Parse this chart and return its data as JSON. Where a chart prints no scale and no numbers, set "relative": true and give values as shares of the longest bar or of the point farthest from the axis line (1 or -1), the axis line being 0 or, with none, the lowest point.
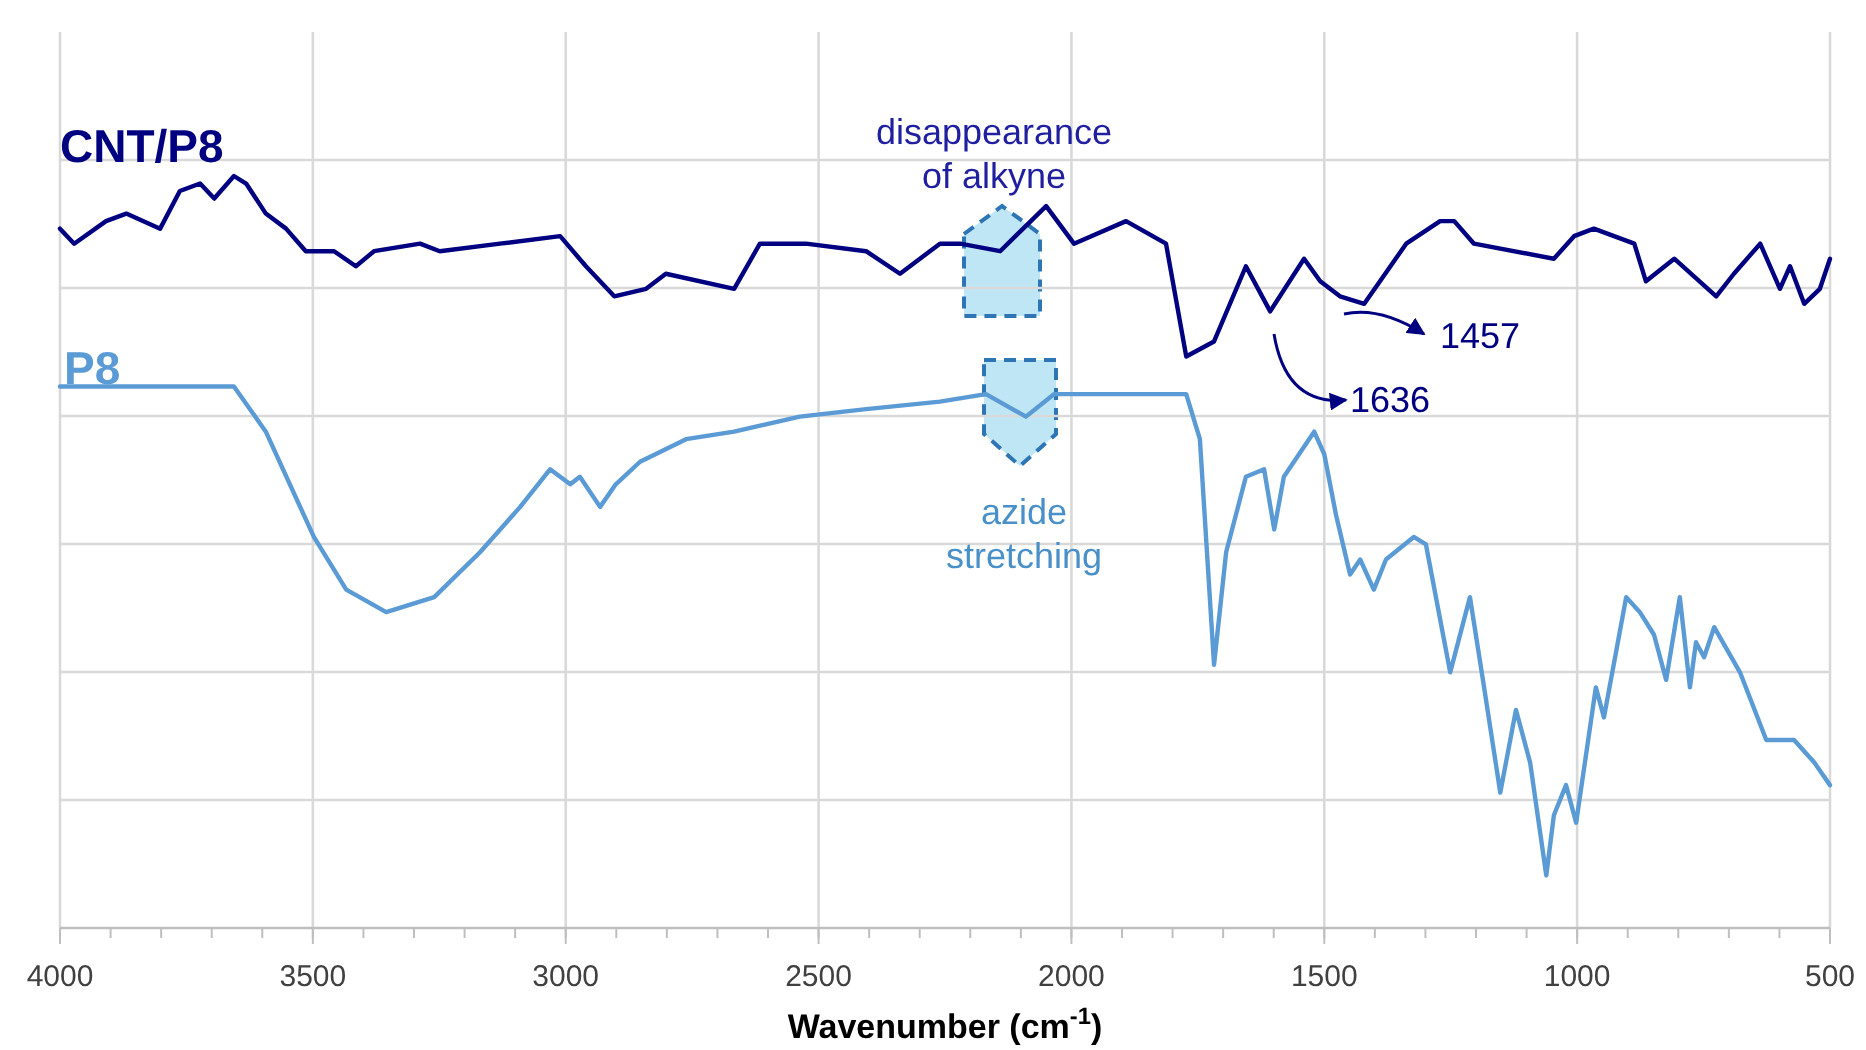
{
  "chart_data": {
    "type": "line",
    "relative": true,
    "xlabel": "Wavenumber (cm$^{-1}$)",
    "xlim": [
      4000,
      500
    ],
    "xticks": [
      4000,
      3500,
      3000,
      2500,
      2000,
      1500,
      1000,
      500
    ],
    "grid": true,
    "legend": false,
    "marker": "none",
    "line_style": "solid",
    "annotations": [
      "disappearance\nof alkyne",
      "azide\nstretching",
      "1636",
      "1457"
    ],
    "series": [
      {
        "name": "CNT/P8",
        "color": "#000080",
        "x": [
          4000,
          3972,
          3909,
          3869,
          3802,
          3763,
          3723,
          3695,
          3656,
          3632,
          3593,
          3553,
          3514,
          3458,
          3415,
          3379,
          3288,
          3249,
          3130,
          3011,
          2960,
          2904,
          2841,
          2802,
          2667,
          2616,
          2525,
          2406,
          2339,
          2260,
          2220,
          2141,
          2050,
          1995,
          1892,
          1813,
          1773,
          1718,
          1655,
          1607,
          1540,
          1508,
          1469,
          1421,
          1338,
          1271,
          1243,
          1204,
          1046,
          1006,
          967,
          887,
          864,
          808,
          725,
          690,
          638,
          599,
          579,
          551,
          520,
          500
        ],
        "values": [
          0.93,
          0.91,
          0.94,
          0.95,
          0.93,
          0.98,
          0.99,
          0.97,
          1.0,
          0.99,
          0.95,
          0.93,
          0.9,
          0.9,
          0.88,
          0.9,
          0.91,
          0.9,
          0.91,
          0.92,
          0.88,
          0.84,
          0.85,
          0.87,
          0.85,
          0.91,
          0.91,
          0.9,
          0.87,
          0.91,
          0.91,
          0.9,
          0.96,
          0.91,
          0.94,
          0.91,
          0.76,
          0.78,
          0.88,
          0.82,
          0.89,
          0.86,
          0.84,
          0.83,
          0.91,
          0.94,
          0.94,
          0.91,
          0.89,
          0.92,
          0.93,
          0.91,
          0.86,
          0.89,
          0.84,
          0.87,
          0.91,
          0.85,
          0.88,
          0.83,
          0.85,
          0.89
        ]
      },
      {
        "name": "P8",
        "color": "#5b9bd5",
        "x": [
          4000,
          3684,
          3656,
          3593,
          3498,
          3434,
          3355,
          3260,
          3169,
          3090,
          3031,
          2991,
          2972,
          2932,
          2901,
          2853,
          2762,
          2667,
          2537,
          2406,
          2260,
          2169,
          2090,
          2034,
          1773,
          1746,
          1718,
          1694,
          1655,
          1619,
          1599,
          1580,
          1520,
          1500,
          1477,
          1449,
          1429,
          1402,
          1378,
          1323,
          1299,
          1251,
          1212,
          1184,
          1152,
          1121,
          1093,
          1061,
          1046,
          1022,
          1002,
          963,
          947,
          903,
          876,
          848,
          824,
          797,
          777,
          765,
          749,
          729,
          678,
          626,
          571,
          531,
          500
        ],
        "values": [
          0.72,
          0.72,
          0.72,
          0.66,
          0.52,
          0.45,
          0.42,
          0.44,
          0.5,
          0.56,
          0.61,
          0.59,
          0.6,
          0.56,
          0.59,
          0.62,
          0.65,
          0.66,
          0.68,
          0.69,
          0.7,
          0.71,
          0.68,
          0.71,
          0.71,
          0.65,
          0.35,
          0.5,
          0.6,
          0.61,
          0.53,
          0.6,
          0.66,
          0.63,
          0.55,
          0.47,
          0.49,
          0.45,
          0.49,
          0.52,
          0.51,
          0.34,
          0.44,
          0.32,
          0.18,
          0.29,
          0.22,
          0.07,
          0.15,
          0.19,
          0.14,
          0.32,
          0.28,
          0.44,
          0.42,
          0.39,
          0.33,
          0.44,
          0.32,
          0.38,
          0.36,
          0.4,
          0.34,
          0.25,
          0.25,
          0.22,
          0.19
        ]
      }
    ]
  }
}
